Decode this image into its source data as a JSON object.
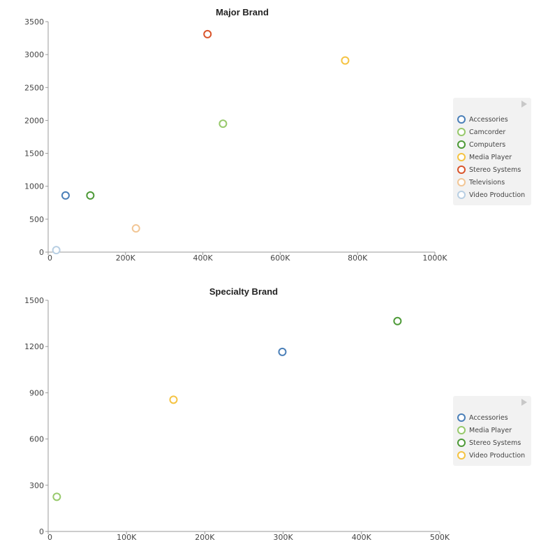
{
  "chart_data": [
    {
      "type": "scatter",
      "title": "Major Brand",
      "xlabel": "",
      "ylabel": "",
      "xlim": [
        0,
        1000000
      ],
      "ylim": [
        0,
        3500
      ],
      "x_ticks": [
        0,
        200000,
        400000,
        600000,
        800000,
        1000000
      ],
      "x_tick_labels": [
        "0",
        "200K",
        "400K",
        "600K",
        "800K",
        "1000K"
      ],
      "y_ticks": [
        0,
        500,
        1000,
        1500,
        2000,
        2500,
        3000,
        3500
      ],
      "y_tick_labels": [
        "0",
        "500",
        "1000",
        "1500",
        "2000",
        "2500",
        "3000",
        "3500"
      ],
      "grid": false,
      "legend_position": "right",
      "series": [
        {
          "name": "Accessories",
          "color": "#4a7fb8",
          "points": [
            {
              "x": 45000,
              "y": 860
            }
          ]
        },
        {
          "name": "Camcorder",
          "color": "#97c96b",
          "points": [
            {
              "x": 452000,
              "y": 1950
            }
          ]
        },
        {
          "name": "Computers",
          "color": "#4d9a37",
          "points": [
            {
              "x": 109000,
              "y": 860
            }
          ]
        },
        {
          "name": "Media Player",
          "color": "#f5c342",
          "points": [
            {
              "x": 768000,
              "y": 2910
            }
          ]
        },
        {
          "name": "Stereo Systems",
          "color": "#d9542b",
          "points": [
            {
              "x": 412000,
              "y": 3310
            }
          ]
        },
        {
          "name": "Televisions",
          "color": "#f2c695",
          "points": [
            {
              "x": 227000,
              "y": 360
            }
          ]
        },
        {
          "name": "Video Production",
          "color": "#b8cfe3",
          "points": [
            {
              "x": 21000,
              "y": 30
            }
          ]
        }
      ]
    },
    {
      "type": "scatter",
      "title": "Specialty Brand",
      "xlabel": "",
      "ylabel": "",
      "xlim": [
        0,
        500000
      ],
      "ylim": [
        0,
        1500
      ],
      "x_ticks": [
        0,
        100000,
        200000,
        300000,
        400000,
        500000
      ],
      "x_tick_labels": [
        "0",
        "100K",
        "200K",
        "300K",
        "400K",
        "500K"
      ],
      "y_ticks": [
        0,
        300,
        600,
        900,
        1200,
        1500
      ],
      "y_tick_labels": [
        "0",
        "300",
        "600",
        "900",
        "1200",
        "1500"
      ],
      "grid": false,
      "legend_position": "right",
      "series": [
        {
          "name": "Accessories",
          "color": "#4a7fb8",
          "points": [
            {
              "x": 299000,
              "y": 1165
            }
          ]
        },
        {
          "name": "Media Player",
          "color": "#97c96b",
          "points": [
            {
              "x": 11000,
              "y": 225
            }
          ]
        },
        {
          "name": "Stereo Systems",
          "color": "#4d9a37",
          "points": [
            {
              "x": 446000,
              "y": 1365
            }
          ]
        },
        {
          "name": "Video Production",
          "color": "#f5c342",
          "points": [
            {
              "x": 160000,
              "y": 855
            }
          ]
        }
      ]
    }
  ]
}
